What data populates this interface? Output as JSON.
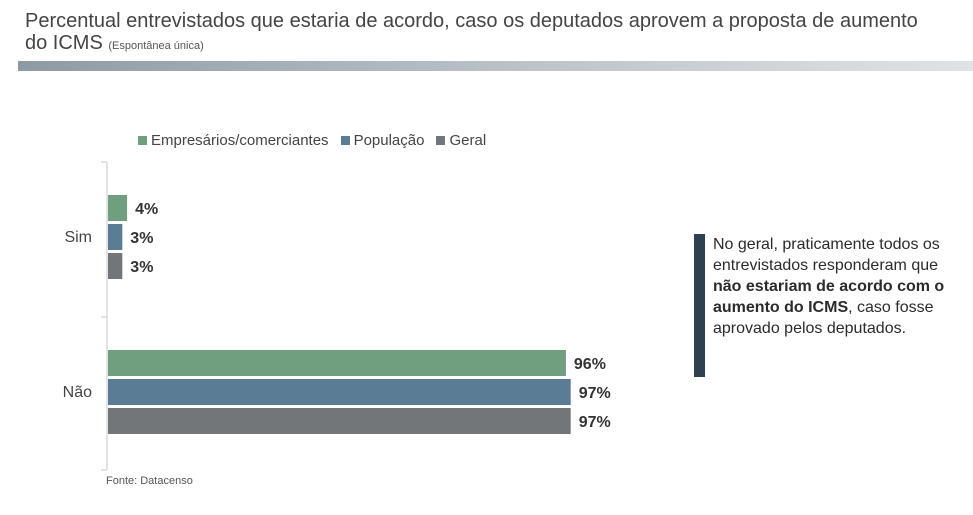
{
  "title": {
    "main": "Percentual entrevistados que estaria de acordo, caso os deputados aprovem a proposta de aumento do ICMS",
    "sub": "(Espontânea única)"
  },
  "chart_data": {
    "type": "bar",
    "orientation": "horizontal",
    "categories": [
      "Sim",
      "Não"
    ],
    "series": [
      {
        "name": "Empresários/comerciantes",
        "values": [
          4,
          96
        ],
        "labels": [
          "4%",
          "96%"
        ],
        "color": "#6f9f7f"
      },
      {
        "name": "População",
        "values": [
          3,
          97
        ],
        "labels": [
          "3%",
          "97%"
        ],
        "color": "#5b7c95"
      },
      {
        "name": "Geral",
        "values": [
          3,
          97
        ],
        "labels": [
          "3%",
          "97%"
        ],
        "color": "#737679"
      }
    ],
    "xlim": [
      0,
      100
    ],
    "grid": false,
    "legend_position": "top"
  },
  "callout": {
    "pre": "No geral, praticamente todos os entrevistados responderam que ",
    "bold": "não estariam de acordo com o aumento do ICMS",
    "post": ", caso fosse aprovado pelos deputados."
  },
  "source": "Fonte: Datacenso",
  "colors": {
    "accent_bar": "#2f4150",
    "rule": "#8e9aa3"
  }
}
